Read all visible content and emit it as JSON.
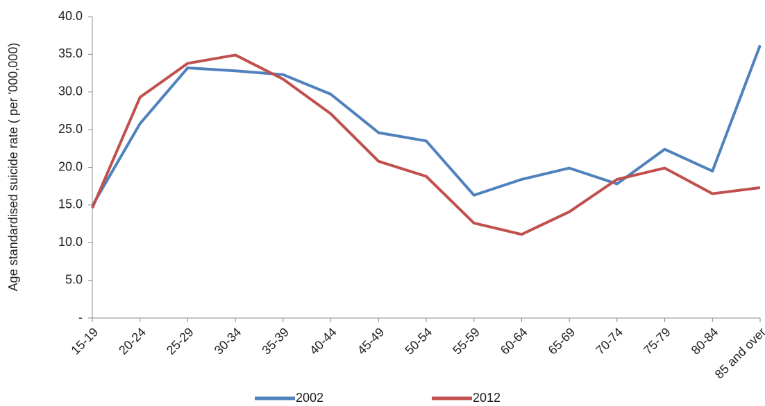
{
  "chart_data": {
    "type": "line",
    "y_label": "Age standardised  suicide rate ( per '000,000)",
    "categories": [
      "15-19",
      "20-24",
      "25-29",
      "30-34",
      "35-39",
      "40-44",
      "45-49",
      "50-54",
      "55-59",
      "60-64",
      "65-69",
      "70-74",
      "75-79",
      "80-84",
      "85 and over"
    ],
    "series": [
      {
        "name": "2002",
        "color": "#4f81bd",
        "values": [
          14.9,
          25.8,
          33.2,
          32.8,
          32.3,
          29.7,
          24.6,
          23.5,
          16.3,
          18.4,
          19.9,
          17.8,
          22.4,
          19.5,
          36.2
        ]
      },
      {
        "name": "2012",
        "color": "#c0504d",
        "values": [
          14.6,
          29.3,
          33.8,
          34.9,
          31.7,
          27.1,
          20.8,
          18.8,
          12.6,
          11.1,
          14.1,
          18.4,
          19.9,
          16.5,
          17.3
        ]
      }
    ],
    "ylim": [
      0,
      40
    ],
    "yticks": [
      {
        "value": 0,
        "label": "-"
      },
      {
        "value": 5,
        "label": "5.0"
      },
      {
        "value": 10,
        "label": "10.0"
      },
      {
        "value": 15,
        "label": "15.0"
      },
      {
        "value": 20,
        "label": "20.0"
      },
      {
        "value": 25,
        "label": "25.0"
      },
      {
        "value": 30,
        "label": "30.0"
      },
      {
        "value": 35,
        "label": "35.0"
      },
      {
        "value": 40,
        "label": "40.0"
      }
    ],
    "grid": false,
    "legend": "bottom"
  }
}
